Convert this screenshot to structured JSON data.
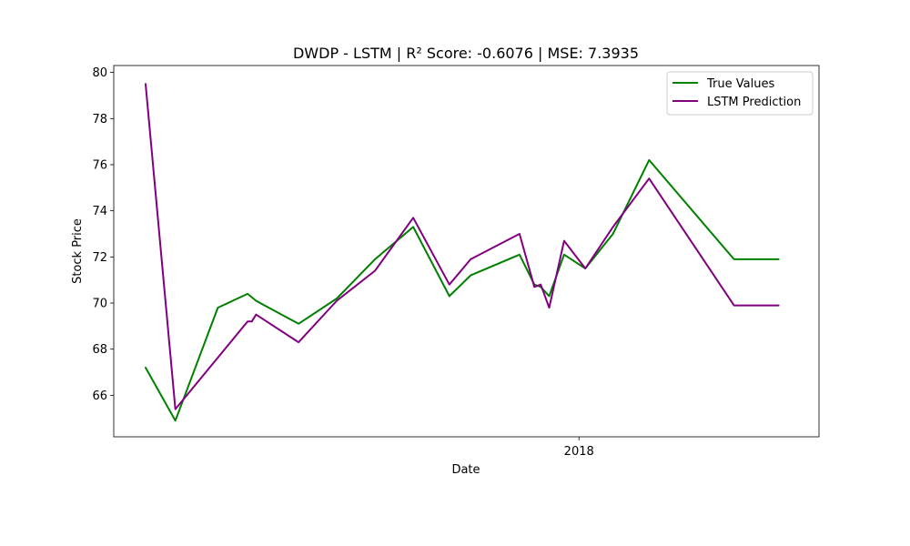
{
  "chart_data": {
    "type": "line",
    "title": "DWDP - LSTM | R² Score: -0.6076 | MSE: 7.3935",
    "xlabel": "Date",
    "ylabel": "Stock Price",
    "ylim": [
      64.2,
      80.3
    ],
    "xlim": [
      "2017-05-27",
      "2018-04-24"
    ],
    "y_ticks": [
      66,
      68,
      70,
      72,
      74,
      76,
      78,
      80
    ],
    "y_tick_labels": [
      "66",
      "68",
      "70",
      "72",
      "74",
      "76",
      "78",
      "80"
    ],
    "x_ticks": [
      "2018-01-01"
    ],
    "x_tick_labels": [
      "2018"
    ],
    "grid": false,
    "legend_position": "top-right",
    "series": [
      {
        "name": "True Values",
        "color": "#008000",
        "x": [
          "2017-06-11",
          "2017-06-25",
          "2017-07-15",
          "2017-07-29",
          "2017-08-02",
          "2017-08-06",
          "2017-08-22",
          "2017-09-09",
          "2017-09-27",
          "2017-10-15",
          "2017-11-01",
          "2017-11-11",
          "2017-12-04",
          "2017-12-11",
          "2017-12-14",
          "2017-12-18",
          "2017-12-25",
          "2018-01-04",
          "2018-01-17",
          "2018-02-03",
          "2018-03-15",
          "2018-04-05"
        ],
        "y": [
          67.2,
          64.9,
          69.8,
          70.4,
          70.1,
          69.9,
          69.1,
          70.2,
          71.9,
          73.3,
          70.3,
          71.2,
          72.1,
          70.8,
          70.7,
          70.3,
          72.1,
          71.5,
          73.0,
          76.2,
          71.9,
          71.9
        ]
      },
      {
        "name": "LSTM Prediction",
        "color": "#800080",
        "x": [
          "2017-06-11",
          "2017-06-25",
          "2017-07-29",
          "2017-07-31",
          "2017-08-02",
          "2017-08-22",
          "2017-09-09",
          "2017-09-27",
          "2017-10-15",
          "2017-11-01",
          "2017-11-11",
          "2017-12-04",
          "2017-12-11",
          "2017-12-14",
          "2017-12-18",
          "2017-12-25",
          "2018-01-04",
          "2018-01-17",
          "2018-02-03",
          "2018-03-15",
          "2018-04-05"
        ],
        "y": [
          79.5,
          65.4,
          69.2,
          69.2,
          69.5,
          68.3,
          70.1,
          71.4,
          73.7,
          70.8,
          71.9,
          73.0,
          70.7,
          70.8,
          69.8,
          72.7,
          71.5,
          73.3,
          75.4,
          69.9,
          69.9
        ]
      }
    ]
  }
}
